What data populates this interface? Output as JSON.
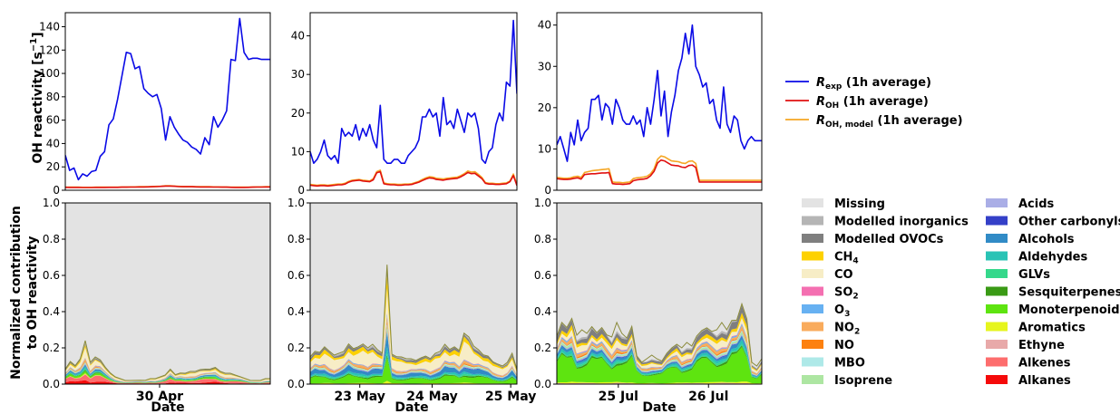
{
  "chart_data": [
    {
      "type": "line",
      "panel": "top-1",
      "ylabel": "OH reactivity [s⁻¹]",
      "xlabel": "",
      "ylim": [
        0,
        152
      ],
      "yticks": [
        0,
        20,
        40,
        60,
        80,
        100,
        120,
        140
      ],
      "x": [
        0,
        1,
        2,
        3,
        4,
        5,
        6,
        7,
        8,
        9,
        10,
        11,
        12,
        13,
        14,
        15,
        16,
        17,
        18,
        19,
        20,
        21,
        22,
        23,
        24,
        25,
        26,
        27,
        28,
        29,
        30,
        31,
        32,
        33,
        34,
        35,
        36,
        37,
        38,
        39,
        40,
        41,
        42,
        43,
        44,
        45,
        46,
        47
      ],
      "series": [
        {
          "name": "R_exp (1h average)",
          "color": "#0a0ae6",
          "values": [
            30,
            17,
            19,
            9,
            14,
            12,
            16,
            17,
            29,
            33,
            56,
            61,
            78,
            98,
            118,
            117,
            104,
            106,
            87,
            83,
            80,
            82,
            70,
            43,
            63,
            54,
            48,
            43,
            41,
            37,
            35,
            31,
            45,
            39,
            63,
            54,
            60,
            68,
            112,
            111,
            147,
            118,
            112,
            113,
            113,
            112,
            112,
            112
          ]
        },
        {
          "name": "R_OH (1h average)",
          "color": "#e01010",
          "values": [
            2.5,
            2.4,
            2.4,
            2.4,
            2.3,
            2.3,
            2.3,
            2.4,
            2.4,
            2.4,
            2.5,
            2.5,
            2.5,
            2.6,
            2.6,
            2.7,
            2.7,
            2.8,
            2.8,
            2.9,
            3.0,
            3.1,
            3.3,
            3.6,
            3.6,
            3.4,
            3.1,
            3.0,
            3.0,
            3.0,
            2.9,
            2.8,
            2.8,
            2.8,
            2.7,
            2.7,
            2.6,
            2.6,
            2.5,
            2.4,
            2.4,
            2.4,
            2.5,
            2.6,
            2.7,
            2.7,
            2.8,
            2.8
          ]
        },
        {
          "name": "R_OH,model (1h average)",
          "color": "#f5a623",
          "values": [
            2.7,
            2.6,
            2.6,
            2.6,
            2.5,
            2.5,
            2.5,
            2.6,
            2.6,
            2.6,
            2.7,
            2.7,
            2.7,
            2.8,
            2.8,
            2.9,
            2.9,
            3.0,
            3.0,
            3.1,
            3.2,
            3.3,
            3.5,
            3.8,
            3.8,
            3.6,
            3.3,
            3.2,
            3.2,
            3.2,
            3.1,
            3.0,
            3.0,
            3.0,
            2.9,
            2.9,
            2.8,
            2.8,
            2.7,
            2.6,
            2.6,
            2.6,
            2.7,
            2.8,
            2.9,
            2.9,
            3.0,
            3.0
          ]
        }
      ]
    },
    {
      "type": "line",
      "panel": "top-2",
      "ylim": [
        0,
        46
      ],
      "yticks": [
        0,
        10,
        20,
        30,
        40
      ],
      "x": [
        0,
        1,
        2,
        3,
        4,
        5,
        6,
        7,
        8,
        9,
        10,
        11,
        12,
        13,
        14,
        15,
        16,
        17,
        18,
        19,
        20,
        21,
        22,
        23,
        24,
        25,
        26,
        27,
        28,
        29,
        30,
        31,
        32,
        33,
        34,
        35,
        36,
        37,
        38,
        39,
        40,
        41,
        42,
        43,
        44,
        45,
        46,
        47,
        48,
        49,
        50,
        51,
        52,
        53,
        54,
        55,
        56,
        57,
        58,
        59
      ],
      "series": [
        {
          "name": "R_exp (1h average)",
          "color": "#0a0ae6",
          "values": [
            10,
            7,
            8,
            10,
            13,
            9,
            8,
            9,
            7,
            16,
            14,
            15,
            14,
            17,
            13,
            16,
            14,
            17,
            13,
            11,
            22,
            8,
            7,
            7,
            8,
            8,
            7,
            7,
            9,
            10,
            11,
            13,
            19,
            19,
            21,
            19,
            20,
            14,
            24,
            17,
            18,
            16,
            21,
            18,
            15,
            20,
            19,
            20,
            16,
            8,
            7,
            10,
            11,
            17,
            20,
            18,
            28,
            27,
            44,
            25
          ]
        },
        {
          "name": "R_OH (1h average)",
          "color": "#e01010",
          "values": [
            1.3,
            1.2,
            1.1,
            1.2,
            1.2,
            1.1,
            1.2,
            1.3,
            1.4,
            1.4,
            1.6,
            2.1,
            2.4,
            2.5,
            2.6,
            2.4,
            2.3,
            2.2,
            2.7,
            4.5,
            4.8,
            1.7,
            1.5,
            1.4,
            1.4,
            1.3,
            1.3,
            1.4,
            1.4,
            1.5,
            1.8,
            2.1,
            2.5,
            2.9,
            3.2,
            3.1,
            2.8,
            2.7,
            2.6,
            2.8,
            2.9,
            3.0,
            3.1,
            3.5,
            4.0,
            4.6,
            4.3,
            4.4,
            3.7,
            3.0,
            1.8,
            1.6,
            1.6,
            1.5,
            1.5,
            1.6,
            1.7,
            2.2,
            3.8,
            1.2
          ]
        },
        {
          "name": "R_OH,model (1h average)",
          "color": "#f5a623",
          "values": [
            1.5,
            1.4,
            1.3,
            1.4,
            1.4,
            1.3,
            1.4,
            1.5,
            1.6,
            1.6,
            1.8,
            2.3,
            2.6,
            2.7,
            2.8,
            2.6,
            2.5,
            2.4,
            3.0,
            4.8,
            5.2,
            1.9,
            1.7,
            1.6,
            1.6,
            1.5,
            1.5,
            1.6,
            1.6,
            1.7,
            2.0,
            2.3,
            2.8,
            3.2,
            3.5,
            3.4,
            3.1,
            3.0,
            2.9,
            3.1,
            3.2,
            3.3,
            3.4,
            3.8,
            4.3,
            5.0,
            4.7,
            4.8,
            4.1,
            3.3,
            2.0,
            1.8,
            1.8,
            1.7,
            1.7,
            1.8,
            1.9,
            2.4,
            4.2,
            1.5
          ]
        }
      ]
    },
    {
      "type": "line",
      "panel": "top-3",
      "ylim": [
        0,
        43
      ],
      "yticks": [
        0,
        10,
        20,
        30,
        40
      ],
      "x": [
        0,
        1,
        2,
        3,
        4,
        5,
        6,
        7,
        8,
        9,
        10,
        11,
        12,
        13,
        14,
        15,
        16,
        17,
        18,
        19,
        20,
        21,
        22,
        23,
        24,
        25,
        26,
        27,
        28,
        29,
        30,
        31,
        32,
        33,
        34,
        35,
        36,
        37,
        38,
        39,
        40,
        41,
        42,
        43,
        44,
        45,
        46,
        47,
        48,
        49,
        50,
        51,
        52,
        53,
        54,
        55,
        56,
        57,
        58,
        59
      ],
      "series": [
        {
          "name": "R_exp (1h average)",
          "color": "#0a0ae6",
          "values": [
            11,
            13,
            10,
            7,
            14,
            11,
            17,
            12,
            14,
            15,
            22,
            22,
            23,
            17,
            21,
            20,
            16,
            22,
            20,
            17,
            16,
            16,
            18,
            16,
            17,
            13,
            20,
            16,
            22,
            29,
            18,
            24,
            13,
            19,
            23,
            29,
            32,
            38,
            33,
            40,
            30,
            28,
            25,
            26,
            21,
            22,
            17,
            15,
            25,
            16,
            14,
            18,
            17,
            12,
            10,
            12,
            13,
            12,
            12,
            12
          ]
        },
        {
          "name": "R_OH (1h average)",
          "color": "#e01010",
          "values": [
            2.8,
            2.7,
            2.6,
            2.6,
            2.7,
            2.9,
            3.0,
            2.7,
            3.8,
            3.9,
            4.0,
            4.0,
            4.1,
            4.2,
            4.2,
            4.3,
            1.6,
            1.5,
            1.5,
            1.4,
            1.5,
            1.6,
            2.3,
            2.5,
            2.6,
            2.7,
            2.9,
            3.5,
            4.6,
            6.6,
            7.3,
            7.1,
            6.6,
            6.1,
            6.0,
            5.9,
            5.6,
            5.5,
            6.0,
            6.1,
            5.5,
            2.0,
            2.0,
            2.0,
            2.0,
            2.0,
            2.0,
            2.0,
            2.0,
            2.0,
            2.0,
            2.0,
            2.0,
            2.0,
            2.0,
            2.0,
            2.0,
            2.0,
            2.0,
            2.0
          ]
        },
        {
          "name": "R_OH,model (1h average)",
          "color": "#f5a623",
          "values": [
            3.1,
            3.0,
            2.9,
            2.9,
            3.0,
            3.3,
            3.4,
            3.1,
            4.3,
            4.5,
            4.7,
            4.8,
            4.9,
            5.0,
            5.1,
            5.2,
            2.0,
            1.9,
            1.9,
            1.8,
            1.9,
            2.0,
            2.8,
            3.0,
            3.1,
            3.2,
            3.4,
            4.0,
            5.2,
            7.5,
            8.3,
            8.1,
            7.6,
            7.1,
            7.0,
            6.9,
            6.6,
            6.5,
            7.0,
            7.1,
            6.5,
            2.4,
            2.4,
            2.4,
            2.4,
            2.4,
            2.4,
            2.4,
            2.4,
            2.4,
            2.4,
            2.4,
            2.4,
            2.4,
            2.4,
            2.4,
            2.4,
            2.4,
            2.4,
            2.4
          ]
        }
      ]
    },
    {
      "type": "area",
      "panel": "bottom-1",
      "ylabel": "Normalized contribution\nto OH reactivity",
      "xlabel": "Date",
      "xticks": [
        "30 Apr"
      ],
      "ylim": [
        0,
        1
      ],
      "yticks": [
        "0.0",
        "0.2",
        "0.4",
        "0.6",
        "0.8",
        "1.0"
      ],
      "background": "Missing",
      "top_envelope": [
        0.08,
        0.12,
        0.1,
        0.14,
        0.24,
        0.12,
        0.15,
        0.13,
        0.09,
        0.06,
        0.04,
        0.03,
        0.02,
        0.02,
        0.02,
        0.02,
        0.02,
        0.03,
        0.03,
        0.04,
        0.05,
        0.08,
        0.05,
        0.06,
        0.06,
        0.07,
        0.07,
        0.08,
        0.08,
        0.08,
        0.09,
        0.07,
        0.06,
        0.06,
        0.05,
        0.04,
        0.03,
        0.02,
        0.02,
        0.02,
        0.03,
        0.03
      ]
    },
    {
      "type": "area",
      "panel": "bottom-2",
      "xlabel": "Date",
      "xticks": [
        "23 May",
        "24 May",
        "25 May"
      ],
      "ylim": [
        0,
        1
      ],
      "yticks": [
        "0.0",
        "0.2",
        "0.4",
        "0.6",
        "0.8",
        "1.0"
      ],
      "top_envelope": [
        0.15,
        0.18,
        0.17,
        0.2,
        0.18,
        0.16,
        0.17,
        0.18,
        0.22,
        0.19,
        0.2,
        0.22,
        0.2,
        0.22,
        0.19,
        0.17,
        0.64,
        0.16,
        0.15,
        0.15,
        0.14,
        0.14,
        0.13,
        0.14,
        0.15,
        0.14,
        0.17,
        0.18,
        0.22,
        0.19,
        0.2,
        0.18,
        0.28,
        0.26,
        0.21,
        0.19,
        0.16,
        0.15,
        0.12,
        0.11,
        0.1,
        0.12,
        0.17,
        0.08
      ]
    },
    {
      "type": "area",
      "panel": "bottom-3",
      "xlabel": "Date",
      "xticks": [
        "25 Jul",
        "26 Jul"
      ],
      "ylim": [
        0,
        1
      ],
      "yticks": [
        "0.0",
        "0.2",
        "0.4",
        "0.6",
        "0.8",
        "1.0"
      ],
      "top_envelope": [
        0.25,
        0.3,
        0.28,
        0.36,
        0.27,
        0.3,
        0.28,
        0.3,
        0.25,
        0.28,
        0.27,
        0.26,
        0.34,
        0.28,
        0.24,
        0.28,
        0.14,
        0.12,
        0.14,
        0.16,
        0.14,
        0.12,
        0.15,
        0.18,
        0.22,
        0.2,
        0.23,
        0.21,
        0.25,
        0.26,
        0.28,
        0.29,
        0.3,
        0.34,
        0.3,
        0.33,
        0.31,
        0.4,
        0.36,
        0.12,
        0.1,
        0.14
      ]
    }
  ],
  "legend_top": [
    {
      "base": "R",
      "sub": "exp",
      "suffix": " (1h average)",
      "color": "#0a0ae6"
    },
    {
      "base": "R",
      "sub": "OH",
      "suffix": " (1h average)",
      "color": "#e01010"
    },
    {
      "base": "R",
      "sub": "OH, model",
      "suffix": " (1h average)",
      "color": "#f5a623"
    }
  ],
  "legend_bottom": [
    {
      "label": "Missing",
      "color": "#e3e3e3"
    },
    {
      "label": "Modelled inorganics",
      "color": "#b5b5b5"
    },
    {
      "label": "Modelled OVOCs",
      "color": "#7f7f7f"
    },
    {
      "label": "CH",
      "sub": "4",
      "color": "#fdd100"
    },
    {
      "label": "CO",
      "color": "#f7edc6"
    },
    {
      "label": "SO",
      "sub": "2",
      "color": "#f46fb1"
    },
    {
      "label": "O",
      "sub": "3",
      "color": "#67b1f2"
    },
    {
      "label": "NO",
      "sub": "2",
      "color": "#f9ab5c"
    },
    {
      "label": "NO",
      "color": "#fd8110"
    },
    {
      "label": "MBO",
      "color": "#aee9e8"
    },
    {
      "label": "Isoprene",
      "color": "#ade6a2"
    },
    {
      "label": "Acids",
      "color": "#aaaee6"
    },
    {
      "label": "Other carbonyls",
      "color": "#3440c8"
    },
    {
      "label": "Alcohols",
      "color": "#318bc6"
    },
    {
      "label": "Aldehydes",
      "color": "#29c3b5"
    },
    {
      "label": "GLVs",
      "color": "#35d88b"
    },
    {
      "label": "Sesquiterpenes",
      "color": "#3a9a15"
    },
    {
      "label": "Monoterpenoids",
      "color": "#5ee410"
    },
    {
      "label": "Aromatics",
      "color": "#e6f51d"
    },
    {
      "label": "Ethyne",
      "color": "#e8a9a9"
    },
    {
      "label": "Alkenes",
      "color": "#fd6d6d"
    },
    {
      "label": "Alkanes",
      "color": "#f50a0a"
    }
  ],
  "axis_titles": {
    "top_ylabel": "OH reactivity [s",
    "top_ylabel_sup": "−1",
    "top_ylabel_end": "]",
    "bottom_ylabel_1": "Normalized contribution",
    "bottom_ylabel_2": "to OH reactivity",
    "xlabel": "Date"
  }
}
